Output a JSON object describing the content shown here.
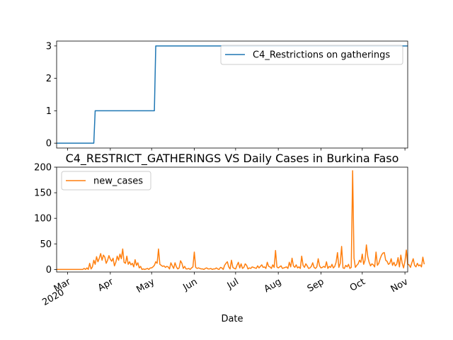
{
  "chart_data": [
    {
      "type": "line",
      "title": "",
      "xlabel": "",
      "ylabel": "",
      "ylim": [
        -0.15,
        3.15
      ],
      "xlim": [
        "2020-02-22",
        "2020-11-03"
      ],
      "y_ticks": [
        "0",
        "1",
        "2",
        "3"
      ],
      "grid": false,
      "legend_position": "upper right",
      "series": [
        {
          "name": "C4_Restrictions on gatherings",
          "color": "#1f77b4",
          "points": [
            {
              "x": "2020-02-22",
              "y": 0
            },
            {
              "x": "2020-03-20",
              "y": 0
            },
            {
              "x": "2020-03-21",
              "y": 1
            },
            {
              "x": "2020-05-03",
              "y": 1
            },
            {
              "x": "2020-05-04",
              "y": 3
            },
            {
              "x": "2020-11-03",
              "y": 3
            }
          ]
        }
      ]
    },
    {
      "type": "line",
      "title": "C4_RESTRICT_GATHERINGS VS Daily Cases in Burkina Faso",
      "xlabel": "Date",
      "ylabel": "",
      "ylim": [
        -5,
        200
      ],
      "xlim": [
        "2020-02-22",
        "2020-11-03"
      ],
      "y_ticks": [
        "0",
        "50",
        "100",
        "150",
        "200"
      ],
      "x_ticks": [
        {
          "date": "2020-03-01",
          "label": "Mar",
          "sublabel": "2020"
        },
        {
          "date": "2020-04-01",
          "label": "Apr",
          "sublabel": ""
        },
        {
          "date": "2020-05-01",
          "label": "May",
          "sublabel": ""
        },
        {
          "date": "2020-06-01",
          "label": "Jun",
          "sublabel": ""
        },
        {
          "date": "2020-07-01",
          "label": "Jul",
          "sublabel": ""
        },
        {
          "date": "2020-08-01",
          "label": "Aug",
          "sublabel": ""
        },
        {
          "date": "2020-09-01",
          "label": "Sep",
          "sublabel": ""
        },
        {
          "date": "2020-10-01",
          "label": "Oct",
          "sublabel": ""
        },
        {
          "date": "2020-11-01",
          "label": "Nov",
          "sublabel": ""
        }
      ],
      "grid": false,
      "legend_position": "upper left",
      "series": [
        {
          "name": "new_cases",
          "color": "#ff7f0e",
          "start_date": "2020-02-22",
          "values": [
            0,
            0,
            0,
            0,
            0,
            0,
            0,
            0,
            0,
            0,
            0,
            0,
            0,
            0,
            0,
            0,
            0,
            0,
            0,
            0,
            2,
            0,
            3,
            0,
            12,
            1,
            5,
            18,
            10,
            25,
            15,
            22,
            31,
            18,
            28,
            24,
            12,
            18,
            27,
            20,
            16,
            22,
            7,
            14,
            26,
            18,
            30,
            21,
            40,
            14,
            12,
            26,
            10,
            15,
            9,
            12,
            5,
            19,
            8,
            13,
            3,
            6,
            0,
            1,
            0,
            1,
            2,
            0,
            3,
            3,
            5,
            8,
            15,
            12,
            40,
            10,
            8,
            6,
            7,
            4,
            6,
            5,
            1,
            13,
            7,
            2,
            13,
            5,
            1,
            3,
            17,
            12,
            2,
            6,
            1,
            1,
            2,
            0,
            3,
            5,
            34,
            4,
            2,
            3,
            2,
            1,
            1,
            0,
            2,
            3,
            1,
            1,
            2,
            0,
            1,
            1,
            3,
            1,
            0,
            4,
            3,
            0,
            8,
            12,
            15,
            5,
            1,
            18,
            4,
            2,
            1,
            8,
            14,
            3,
            11,
            2,
            4,
            11,
            8,
            1,
            3,
            2,
            5,
            4,
            3,
            2,
            7,
            3,
            6,
            9,
            4,
            5,
            2,
            14,
            6,
            5,
            2,
            9,
            4,
            37,
            5,
            3,
            5,
            7,
            2,
            3,
            4,
            5,
            2,
            14,
            5,
            22,
            7,
            4,
            9,
            3,
            5,
            2,
            26,
            8,
            4,
            11,
            7,
            2,
            3,
            6,
            13,
            4,
            2,
            5,
            21,
            7,
            3,
            4,
            6,
            4,
            15,
            2,
            6,
            4,
            10,
            3,
            6,
            14,
            33,
            4,
            12,
            45,
            3,
            2,
            8,
            5,
            10,
            2,
            4,
            193,
            22,
            4,
            8,
            11,
            18,
            14,
            30,
            10,
            18,
            48,
            25,
            14,
            7,
            11,
            9,
            5,
            34,
            8,
            12,
            21,
            28,
            32,
            33,
            18,
            16,
            10,
            12,
            21,
            8,
            14,
            7,
            10,
            23,
            5,
            28,
            12,
            3,
            16,
            38,
            10,
            9,
            4,
            13,
            21,
            8,
            5,
            12,
            7,
            9,
            5,
            24,
            10
          ]
        }
      ]
    }
  ]
}
